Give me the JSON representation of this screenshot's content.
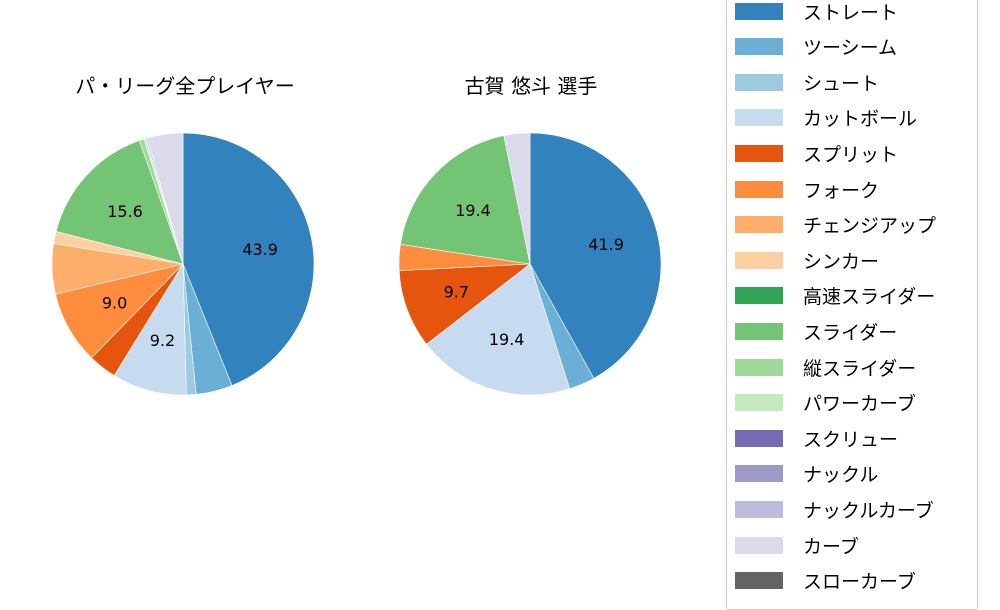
{
  "chart_data": [
    {
      "type": "pie",
      "title": "パ・リーグ全プレイヤー",
      "categories": [
        "ストレート",
        "ツーシーム",
        "シュート",
        "カットボール",
        "スプリット",
        "フォーク",
        "チェンジアップ",
        "シンカー",
        "スライダー",
        "縦スライダー",
        "パワーカーブ",
        "ナックルカーブ",
        "カーブ"
      ],
      "values": [
        43.9,
        4.5,
        1.2,
        9.2,
        3.5,
        9.0,
        6.2,
        1.5,
        15.6,
        0.6,
        0.2,
        0.2,
        4.4
      ],
      "shown_labels": [
        "43.9",
        "",
        "",
        "9.2",
        "",
        "9.0",
        "",
        "",
        "15.6",
        "",
        "",
        "",
        ""
      ]
    },
    {
      "type": "pie",
      "title": "古賀 悠斗  選手",
      "categories": [
        "ストレート",
        "ツーシーム",
        "カットボール",
        "スプリット",
        "フォーク",
        "スライダー",
        "カーブ"
      ],
      "values": [
        41.9,
        3.2,
        19.4,
        9.7,
        3.2,
        19.4,
        3.2
      ],
      "shown_labels": [
        "41.9",
        "",
        "19.4",
        "9.7",
        "",
        "19.4",
        ""
      ]
    }
  ],
  "titles": {
    "left": "パ・リーグ全プレイヤー",
    "right": "古賀 悠斗  選手"
  },
  "legend": [
    {
      "label": "ストレート",
      "color": "#3182bd"
    },
    {
      "label": "ツーシーム",
      "color": "#6baed6"
    },
    {
      "label": "シュート",
      "color": "#9ecae1"
    },
    {
      "label": "カットボール",
      "color": "#c6dbef"
    },
    {
      "label": "スプリット",
      "color": "#e6550d"
    },
    {
      "label": "フォーク",
      "color": "#fd8d3c"
    },
    {
      "label": "チェンジアップ",
      "color": "#fdae6b"
    },
    {
      "label": "シンカー",
      "color": "#fdd0a2"
    },
    {
      "label": "高速スライダー",
      "color": "#31a354"
    },
    {
      "label": "スライダー",
      "color": "#74c476"
    },
    {
      "label": "縦スライダー",
      "color": "#a1d99b"
    },
    {
      "label": "パワーカーブ",
      "color": "#c7e9c0"
    },
    {
      "label": "スクリュー",
      "color": "#756bb1"
    },
    {
      "label": "ナックル",
      "color": "#9e9ac8"
    },
    {
      "label": "ナックルカーブ",
      "color": "#bcbddc"
    },
    {
      "label": "カーブ",
      "color": "#dadaeb"
    },
    {
      "label": "スローカーブ",
      "color": "#636363"
    }
  ]
}
